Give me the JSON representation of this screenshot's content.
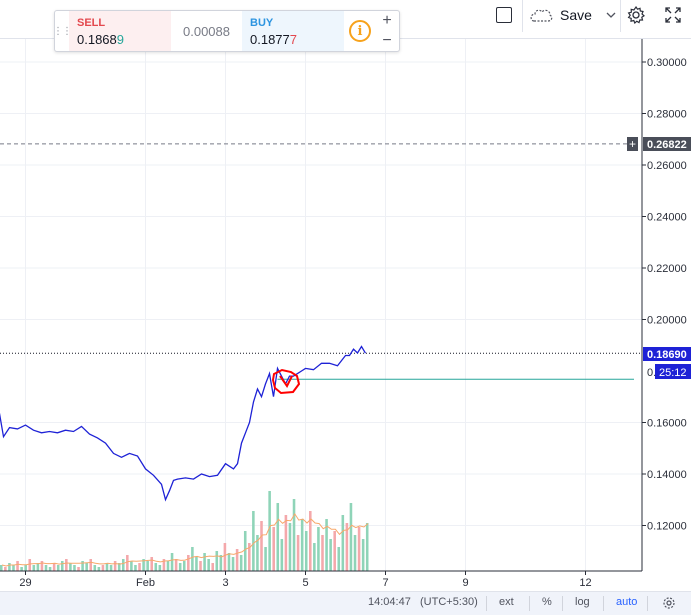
{
  "toolbar": {
    "save_label": "Save",
    "icons": [
      "square-icon",
      "cloud-icon",
      "chevron-down-icon",
      "gear-icon",
      "fullscreen-icon"
    ]
  },
  "trade": {
    "sell_label": "SELL",
    "sell_value": "0.1868",
    "sell_value_tail": "9",
    "spread": "0.00088",
    "buy_label": "BUY",
    "buy_value": "0.1877",
    "buy_value_tail": "7",
    "info_glyph": "i",
    "plus": "+",
    "minus": "−",
    "colors": {
      "sell": "#e3484e",
      "buy": "#2c94e0",
      "info": "#f7a21b"
    }
  },
  "price_labels": {
    "alert": "0.26822",
    "alert_plus": "+",
    "last": "0.18690",
    "countdown": "25:12",
    "countdown_prefix": "0."
  },
  "status": {
    "time": "14:04:47",
    "tz": "(UTC+5:30)",
    "ext": "ext",
    "pct": "%",
    "log": "log",
    "auto": "auto"
  },
  "chart_data": {
    "type": "line",
    "ylim": [
      0.1,
      0.305
    ],
    "xlim": [
      -0.05,
      14.0
    ],
    "y_ticks": [
      "0.30000",
      "0.28000",
      "0.26000",
      "0.24000",
      "0.22000",
      "0.20000",
      "0.16000",
      "0.14000",
      "0.12000"
    ],
    "x_ticks": [
      {
        "label": "29",
        "x": 1.0
      },
      {
        "label": "Feb",
        "x": 4.0
      },
      {
        "label": "3",
        "x": 6.0
      },
      {
        "label": "5",
        "x": 8.0
      },
      {
        "label": "7",
        "x": 10.0
      },
      {
        "label": "9",
        "x": 12.0
      },
      {
        "label": "12",
        "x": 15.0
      }
    ],
    "series": [
      {
        "color": "#1e22d6",
        "x": [
          0.0,
          0.2,
          0.35,
          0.45,
          0.6,
          0.8,
          1.0,
          1.2,
          1.4,
          1.6,
          1.8,
          2.0,
          2.2,
          2.4,
          2.6,
          2.8,
          3.0,
          3.2,
          3.4,
          3.6,
          3.8,
          4.0,
          4.2,
          4.4,
          4.5,
          4.6,
          4.7,
          4.8,
          5.0,
          5.2,
          5.4,
          5.6,
          5.8,
          6.0,
          6.2,
          6.3,
          6.4,
          6.5,
          6.6,
          6.7,
          6.8,
          6.9,
          7.0,
          7.1,
          7.2,
          7.3,
          7.4,
          7.5,
          7.6,
          7.7,
          7.8,
          7.9,
          8.0,
          8.2,
          8.4,
          8.6,
          8.8,
          9.0,
          9.1,
          9.2,
          9.3,
          9.4,
          9.5
        ],
        "values": [
          0.1665,
          0.1662,
          0.1635,
          0.1545,
          0.158,
          0.1575,
          0.159,
          0.157,
          0.156,
          0.1565,
          0.156,
          0.157,
          0.1565,
          0.1585,
          0.1555,
          0.154,
          0.152,
          0.148,
          0.1465,
          0.148,
          0.147,
          0.142,
          0.1395,
          0.136,
          0.13,
          0.1335,
          0.1375,
          0.138,
          0.1385,
          0.138,
          0.14,
          0.139,
          0.1395,
          0.144,
          0.142,
          0.144,
          0.152,
          0.156,
          0.16,
          0.168,
          0.173,
          0.17,
          0.175,
          0.179,
          0.17,
          0.181,
          0.178,
          0.175,
          0.178,
          0.178,
          0.179,
          0.18,
          0.181,
          0.1805,
          0.183,
          0.183,
          0.182,
          0.186,
          0.186,
          0.1885,
          0.187,
          0.1895,
          0.1869
        ]
      }
    ],
    "volume": {
      "values": [
        3,
        2,
        4,
        3,
        5,
        2,
        3,
        6,
        3,
        4,
        5,
        3,
        2,
        4,
        3,
        5,
        6,
        4,
        3,
        2,
        5,
        4,
        6,
        3,
        2,
        3,
        4,
        3,
        5,
        4,
        6,
        8,
        5,
        3,
        4,
        6,
        5,
        7,
        4,
        3,
        6,
        5,
        9,
        6,
        4,
        5,
        8,
        12,
        7,
        5,
        9,
        6,
        4,
        10,
        8,
        14,
        9,
        7,
        11,
        8,
        20,
        14,
        30,
        18,
        25,
        12,
        40,
        22,
        34,
        16,
        28,
        24,
        36,
        18,
        26,
        20,
        30,
        14,
        22,
        18,
        26,
        16,
        20,
        12,
        28,
        24,
        34,
        18,
        22,
        16,
        24
      ]
    },
    "horizontal_lines": [
      {
        "name": "alert",
        "value": 0.26822,
        "style": "dashed",
        "color": "#787b86"
      },
      {
        "name": "last",
        "value": 0.1869,
        "style": "dotted",
        "color": "#131722"
      },
      {
        "name": "position",
        "value": 0.1768,
        "style": "solid",
        "color": "#26a69a",
        "from_x": 7.3
      }
    ],
    "grid": true
  }
}
